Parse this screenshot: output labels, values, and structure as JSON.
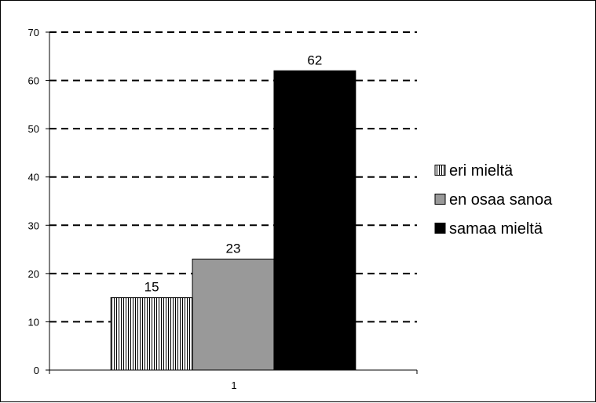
{
  "chart_data": {
    "type": "bar",
    "categories": [
      "1"
    ],
    "series": [
      {
        "name": "eri mieltä",
        "values": [
          15
        ],
        "color": "#ffffff",
        "pattern": "vertical-stripes"
      },
      {
        "name": "en osaa sanoa",
        "values": [
          23
        ],
        "color": "#999999",
        "pattern": "solid"
      },
      {
        "name": "samaa mieltä",
        "values": [
          62
        ],
        "color": "#000000",
        "pattern": "solid"
      }
    ],
    "title": "",
    "xlabel": "",
    "ylabel": "",
    "ylim": [
      0,
      70
    ],
    "yticks": [
      0,
      10,
      20,
      30,
      40,
      50,
      60,
      70
    ],
    "grid": "dashed-horizontal",
    "legend_position": "right",
    "data_labels": true
  }
}
